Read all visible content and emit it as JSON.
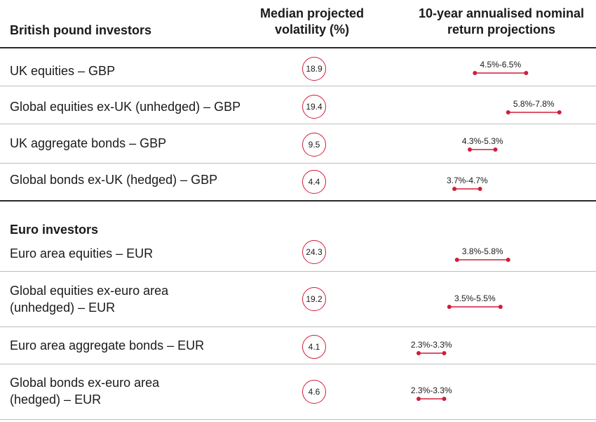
{
  "headers": {
    "asset": "British pound investors",
    "volatility": "Median projected volatility (%)",
    "returns": "10-year annualised nominal return projections"
  },
  "sections": {
    "euro": "Euro investors"
  },
  "chart_data": {
    "type": "table",
    "rows": [
      {
        "asset": "UK equities – GBP",
        "volatility": "18.9",
        "low": 4.5,
        "high": 6.5,
        "range_label": "4.5%-6.5%"
      },
      {
        "asset": "Global equities ex-UK (unhedged) – GBP",
        "volatility": "19.4",
        "low": 5.8,
        "high": 7.8,
        "range_label": "5.8%-7.8%"
      },
      {
        "asset": "UK aggregate bonds – GBP",
        "volatility": "9.5",
        "low": 4.3,
        "high": 5.3,
        "range_label": "4.3%-5.3%"
      },
      {
        "asset": "Global bonds ex-UK (hedged) – GBP",
        "volatility": "4.4",
        "low": 3.7,
        "high": 4.7,
        "range_label": "3.7%-4.7%"
      },
      {
        "asset": "Euro area equities – EUR",
        "volatility": "24.3",
        "low": 3.8,
        "high": 5.8,
        "range_label": "3.8%-5.8%"
      },
      {
        "asset_line1": "Global equities ex-euro area",
        "asset_line2": "(unhedged) – EUR",
        "volatility": "19.2",
        "low": 3.5,
        "high": 5.5,
        "range_label": "3.5%-5.5%"
      },
      {
        "asset": "Euro area aggregate bonds – EUR",
        "volatility": "4.1",
        "low": 2.3,
        "high": 3.3,
        "range_label": "2.3%-3.3%"
      },
      {
        "asset_line1": "Global bonds ex-euro area",
        "asset_line2": "(hedged) – EUR",
        "volatility": "4.6",
        "low": 2.3,
        "high": 3.3,
        "range_label": "2.3%-3.3%"
      }
    ],
    "colors": {
      "accent": "#d01c3a"
    }
  }
}
